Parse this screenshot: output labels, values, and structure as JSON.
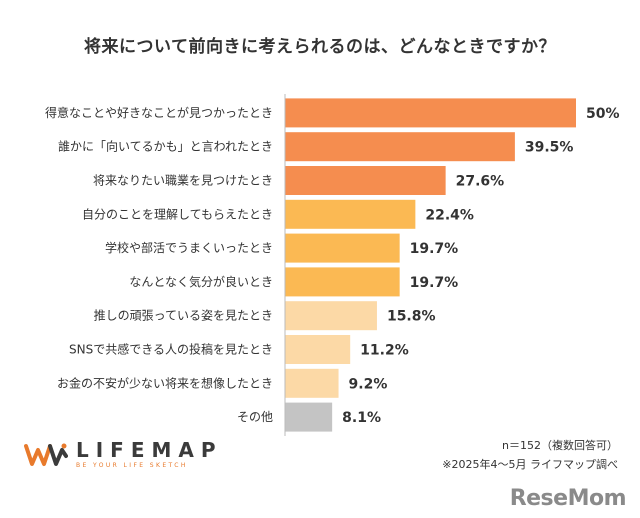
{
  "chart_data": {
    "type": "bar",
    "orientation": "horizontal",
    "title": "将来について前向きに考えられるのは、どんなときですか？",
    "categories": [
      "得意なことや好きなことが見つかったとき",
      "誰かに「向いてるかも」と言われたとき",
      "将来なりたい職業を見つけたとき",
      "自分のことを理解してもらえたとき",
      "学校や部活でうまくいったとき",
      "なんとなく気分が良いとき",
      "推しの頑張っている姿を見たとき",
      "SNSで共感できる人の投稿を見たとき",
      "お金の不安が少ない将来を想像したとき",
      "その他"
    ],
    "values": [
      50,
      39.5,
      27.6,
      22.4,
      19.7,
      19.7,
      15.8,
      11.2,
      9.2,
      8.1
    ],
    "value_labels": [
      "50%",
      "39.5%",
      "27.6%",
      "22.4%",
      "19.7%",
      "19.7%",
      "15.8%",
      "11.2%",
      "9.2%",
      "8.1%"
    ],
    "xlim": [
      0,
      50
    ],
    "colors": [
      "#f58d4f",
      "#f58d4f",
      "#f58d4f",
      "#fbb953",
      "#fbb953",
      "#fbb953",
      "#fcd9a6",
      "#fcd9a6",
      "#fcd9a6",
      "#c4c4c4"
    ],
    "grid": false,
    "legend": "none"
  },
  "footer": {
    "brand_name": "LIFEMAP",
    "brand_tagline": "BE YOUR LIFE SKETCH",
    "note_n": "n＝152（複数回答可）",
    "note_source": "※2025年4～5月 ライフマップ調べ",
    "watermark": "ReseMom"
  },
  "colors": {
    "accent_orange": "#f58d4f",
    "logo_orange": "#e87a2c"
  },
  "icons": {
    "logo": "lifemap-logo-icon"
  }
}
